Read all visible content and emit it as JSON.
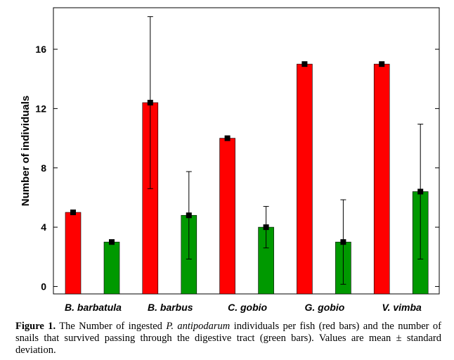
{
  "chart_data": {
    "type": "bar",
    "title": "",
    "xlabel": "",
    "ylabel": "Number of individuals",
    "ylim": [
      -0.5,
      18.8
    ],
    "yticks": [
      0,
      4,
      8,
      12,
      16
    ],
    "grid": false,
    "legend": "none",
    "categories": [
      "B. barbatula",
      "B. barbus",
      "C. gobio",
      "G. gobio",
      "V. vimba"
    ],
    "series": [
      {
        "color": "#ff0000",
        "values": [
          5.0,
          12.4,
          10.0,
          15.0,
          15.0
        ],
        "errors": [
          0.1,
          5.8,
          0.1,
          0.05,
          0.05
        ]
      },
      {
        "color": "#009900",
        "values": [
          3.0,
          4.8,
          4.0,
          3.0,
          6.4
        ],
        "errors": [
          0.1,
          2.95,
          1.4,
          2.85,
          4.55
        ]
      }
    ]
  },
  "caption": {
    "label": "Figure 1.",
    "text_1": " The Number of ingested ",
    "species": "P. antipodarum",
    "text_2": " individuals per fish (red bars) and the number of snails that survived passing through the digestive tract (green bars). Values are mean ± standard deviation."
  }
}
